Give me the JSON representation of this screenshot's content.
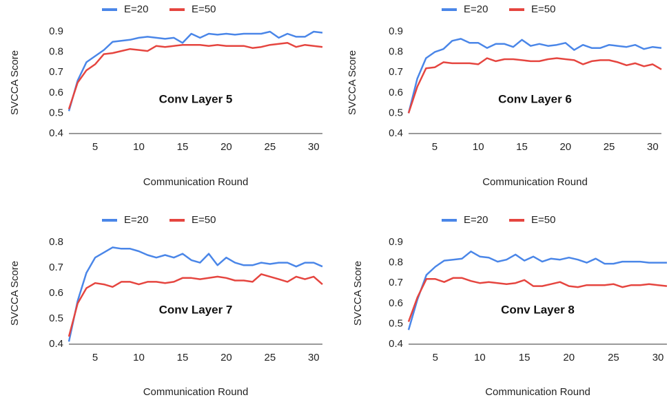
{
  "chart_data": [
    {
      "type": "line",
      "title": "Conv Layer 5",
      "xlabel": "Communication Round",
      "ylabel": "SVCCA Score",
      "x": [
        2,
        3,
        4,
        5,
        6,
        7,
        8,
        9,
        10,
        11,
        12,
        13,
        14,
        15,
        16,
        17,
        18,
        19,
        20,
        21,
        22,
        23,
        24,
        25,
        26,
        27,
        28,
        29,
        30,
        31
      ],
      "xlim": [
        2,
        31
      ],
      "xticks": [
        5,
        10,
        15,
        20,
        25,
        30
      ],
      "ylim": [
        0.4,
        0.9
      ],
      "yticks": [
        0.4,
        0.5,
        0.6,
        0.7,
        0.8,
        0.9
      ],
      "grid": false,
      "series": [
        {
          "name": "E=20",
          "color": "#4a86e8",
          "values": [
            0.51,
            0.66,
            0.75,
            0.78,
            0.81,
            0.85,
            0.855,
            0.86,
            0.87,
            0.875,
            0.87,
            0.865,
            0.87,
            0.845,
            0.89,
            0.87,
            0.89,
            0.885,
            0.89,
            0.885,
            0.89,
            0.89,
            0.89,
            0.9,
            0.87,
            0.89,
            0.875,
            0.875,
            0.9,
            0.895
          ]
        },
        {
          "name": "E=50",
          "color": "#e5453f",
          "values": [
            0.52,
            0.65,
            0.71,
            0.74,
            0.79,
            0.795,
            0.805,
            0.815,
            0.81,
            0.805,
            0.83,
            0.825,
            0.83,
            0.835,
            0.835,
            0.835,
            0.83,
            0.835,
            0.83,
            0.83,
            0.83,
            0.82,
            0.825,
            0.835,
            0.84,
            0.845,
            0.825,
            0.835,
            0.83,
            0.825
          ]
        }
      ]
    },
    {
      "type": "line",
      "title": "Conv Layer 6",
      "xlabel": "Communication Round",
      "ylabel": "SVCCA Score",
      "x": [
        2,
        3,
        4,
        5,
        6,
        7,
        8,
        9,
        10,
        11,
        12,
        13,
        14,
        15,
        16,
        17,
        18,
        19,
        20,
        21,
        22,
        23,
        24,
        25,
        26,
        27,
        28,
        29,
        30,
        31
      ],
      "xlim": [
        2,
        31
      ],
      "xticks": [
        5,
        10,
        15,
        20,
        25,
        30
      ],
      "ylim": [
        0.4,
        0.9
      ],
      "yticks": [
        0.4,
        0.5,
        0.6,
        0.7,
        0.8,
        0.9
      ],
      "grid": false,
      "series": [
        {
          "name": "E=20",
          "color": "#4a86e8",
          "values": [
            0.5,
            0.67,
            0.77,
            0.8,
            0.815,
            0.855,
            0.865,
            0.845,
            0.845,
            0.82,
            0.84,
            0.84,
            0.825,
            0.86,
            0.83,
            0.84,
            0.83,
            0.835,
            0.845,
            0.81,
            0.835,
            0.82,
            0.82,
            0.835,
            0.83,
            0.825,
            0.835,
            0.815,
            0.825,
            0.82
          ]
        },
        {
          "name": "E=50",
          "color": "#e5453f",
          "values": [
            0.5,
            0.63,
            0.72,
            0.725,
            0.75,
            0.745,
            0.745,
            0.745,
            0.74,
            0.77,
            0.755,
            0.765,
            0.765,
            0.76,
            0.755,
            0.755,
            0.765,
            0.77,
            0.765,
            0.76,
            0.74,
            0.755,
            0.76,
            0.76,
            0.75,
            0.735,
            0.745,
            0.73,
            0.74,
            0.715
          ]
        }
      ]
    },
    {
      "type": "line",
      "title": "Conv Layer 7",
      "xlabel": "Communication Round",
      "ylabel": "SVCCA Score",
      "x": [
        2,
        3,
        4,
        5,
        6,
        7,
        8,
        9,
        10,
        11,
        12,
        13,
        14,
        15,
        16,
        17,
        18,
        19,
        20,
        21,
        22,
        23,
        24,
        25,
        26,
        27,
        28,
        29,
        30,
        31
      ],
      "xlim": [
        2,
        31
      ],
      "xticks": [
        5,
        10,
        15,
        20,
        25,
        30
      ],
      "ylim": [
        0.4,
        0.8
      ],
      "yticks": [
        0.4,
        0.5,
        0.6,
        0.7,
        0.8
      ],
      "grid": false,
      "series": [
        {
          "name": "E=20",
          "color": "#4a86e8",
          "values": [
            0.41,
            0.57,
            0.68,
            0.74,
            0.76,
            0.78,
            0.775,
            0.775,
            0.765,
            0.75,
            0.74,
            0.75,
            0.74,
            0.755,
            0.73,
            0.72,
            0.755,
            0.71,
            0.74,
            0.72,
            0.71,
            0.71,
            0.72,
            0.715,
            0.72,
            0.72,
            0.705,
            0.72,
            0.72,
            0.705
          ]
        },
        {
          "name": "E=50",
          "color": "#e5453f",
          "values": [
            0.43,
            0.56,
            0.62,
            0.64,
            0.635,
            0.625,
            0.645,
            0.645,
            0.635,
            0.645,
            0.645,
            0.64,
            0.645,
            0.66,
            0.66,
            0.655,
            0.66,
            0.665,
            0.66,
            0.65,
            0.65,
            0.645,
            0.675,
            0.665,
            0.655,
            0.645,
            0.665,
            0.655,
            0.665,
            0.635
          ]
        }
      ]
    },
    {
      "type": "line",
      "title": "Conv Layer 8",
      "xlabel": "Communication Round",
      "ylabel": "SVCCA Score",
      "x": [
        2,
        3,
        4,
        5,
        6,
        7,
        8,
        9,
        10,
        11,
        12,
        13,
        14,
        15,
        16,
        17,
        18,
        19,
        20,
        21,
        22,
        23,
        24,
        25,
        26,
        27,
        28,
        29,
        30,
        31
      ],
      "xlim": [
        2,
        31
      ],
      "xticks": [
        5,
        10,
        15,
        20,
        25,
        30
      ],
      "ylim": [
        0.4,
        0.9
      ],
      "yticks": [
        0.4,
        0.5,
        0.6,
        0.7,
        0.8,
        0.9
      ],
      "grid": false,
      "series": [
        {
          "name": "E=20",
          "color": "#4a86e8",
          "values": [
            0.47,
            0.62,
            0.74,
            0.78,
            0.81,
            0.815,
            0.82,
            0.855,
            0.83,
            0.825,
            0.805,
            0.815,
            0.84,
            0.81,
            0.83,
            0.805,
            0.82,
            0.815,
            0.825,
            0.815,
            0.8,
            0.82,
            0.795,
            0.795,
            0.805,
            0.805,
            0.805,
            0.8,
            0.8,
            0.8
          ]
        },
        {
          "name": "E=50",
          "color": "#e5453f",
          "values": [
            0.51,
            0.63,
            0.72,
            0.72,
            0.705,
            0.725,
            0.725,
            0.71,
            0.7,
            0.705,
            0.7,
            0.695,
            0.7,
            0.715,
            0.685,
            0.685,
            0.695,
            0.705,
            0.685,
            0.68,
            0.69,
            0.69,
            0.69,
            0.695,
            0.68,
            0.69,
            0.69,
            0.695,
            0.69,
            0.685
          ]
        }
      ]
    }
  ]
}
